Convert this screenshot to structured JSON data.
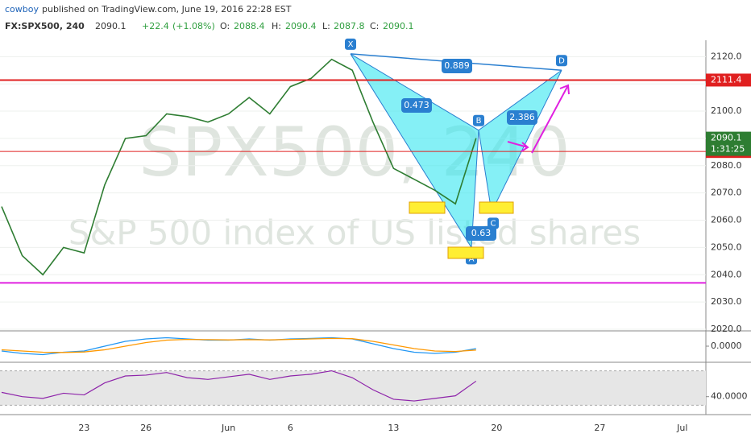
{
  "header": {
    "author": "cowboy",
    "published": "published on TradingView.com, June 19, 2016 22:28 EST",
    "symbol": "FX:SPX500, 240",
    "last": "2090.1",
    "change": "+22.4",
    "change_pct": "(+1.08%)",
    "o_label": "O:",
    "open": "2088.4",
    "h_label": "H:",
    "high": "2090.4",
    "l_label": "L:",
    "low": "2087.8",
    "c_label": "C:",
    "close": "2090.1"
  },
  "watermark": {
    "symbol": "SPX500, 240",
    "description": "S&P 500 index of US listed shares"
  },
  "chart_data": [
    {
      "type": "line",
      "categories": [
        null,
        null,
        null,
        null,
        "23",
        null,
        null,
        "26",
        null,
        null,
        null,
        "Jun",
        null,
        null,
        "6",
        null,
        null,
        null,
        null,
        "13",
        null,
        null,
        null,
        null,
        "20",
        null,
        null,
        null,
        null,
        "27",
        null,
        null,
        null,
        "Jul"
      ],
      "series": [
        {
          "name": "SPX500",
          "color": "#2e7d32",
          "values": [
            2065,
            2047,
            2040,
            2050,
            2048,
            2073,
            2090,
            2091,
            2099,
            2098,
            2096,
            2099,
            2105,
            2099,
            2109,
            2112,
            2119,
            2115,
            2096,
            2079,
            2075,
            2071,
            2066,
            2090.1,
            null,
            null,
            null,
            null,
            null,
            null,
            null,
            null,
            null,
            null
          ]
        }
      ],
      "ylim": [
        2020,
        2126
      ],
      "yticks": [
        {
          "value": 2020,
          "label": "2020.0"
        },
        {
          "value": 2030,
          "label": "2030.0"
        },
        {
          "value": 2040,
          "label": "2040.0"
        },
        {
          "value": 2050,
          "label": "2050.0"
        },
        {
          "value": 2060,
          "label": "2060.0"
        },
        {
          "value": 2070,
          "label": "2070.0"
        },
        {
          "value": 2080,
          "label": "2080.0"
        },
        {
          "value": 2090,
          "label": "2090.0"
        },
        {
          "value": 2100,
          "label": "2100.0"
        },
        {
          "value": 2110,
          "label": "2110.0"
        },
        {
          "value": 2120,
          "label": "2120.0"
        }
      ],
      "levels": [
        {
          "value": 2111.4,
          "color": "#e02020"
        },
        {
          "value": 2085.2,
          "color": "#e02020"
        },
        {
          "value": 2037,
          "color": "#e020e0"
        }
      ],
      "last_price": 2090.1,
      "countdown": "1:31:25",
      "pattern": {
        "color": "#33e6f0",
        "points": [
          {
            "label": "X",
            "value": 2121
          },
          {
            "label": "A",
            "value": 2050
          },
          {
            "label": "B",
            "value": 2093
          },
          {
            "label": "C",
            "value": 2063
          },
          {
            "label": "D",
            "value": 2115
          }
        ],
        "ratios": [
          0.889,
          0.473,
          2.386,
          0.63
        ]
      },
      "grid": true
    },
    {
      "type": "macd",
      "series": [
        {
          "name": "MACD",
          "color": "#2196f3",
          "values": [
            -2,
            -3,
            -3.5,
            -2.5,
            -2,
            0,
            2,
            3,
            3.5,
            3,
            2.5,
            2.5,
            3,
            2.5,
            3,
            3.2,
            3.5,
            3,
            1,
            -1,
            -2.5,
            -3,
            -2.5,
            -1
          ]
        },
        {
          "name": "Signal",
          "color": "#ff9800",
          "values": [
            -1.5,
            -2,
            -2.5,
            -2.6,
            -2.4,
            -1.5,
            0,
            1.5,
            2.5,
            2.8,
            2.7,
            2.6,
            2.7,
            2.6,
            2.8,
            3,
            3.2,
            3.1,
            2,
            0.5,
            -1,
            -2,
            -2.2,
            -1.6
          ]
        }
      ],
      "ylim": [
        -6,
        6
      ],
      "yticks": [
        {
          "value": 0,
          "label": "0.0000"
        }
      ]
    },
    {
      "type": "rsi",
      "series": [
        {
          "name": "RSI",
          "color": "#8e24aa",
          "values": [
            45,
            40,
            38,
            44,
            42,
            56,
            64,
            65,
            68,
            62,
            60,
            63,
            66,
            60,
            64,
            66,
            70,
            62,
            48,
            37,
            35,
            38,
            41,
            58
          ]
        }
      ],
      "ylim": [
        22,
        78
      ],
      "yticks": [
        {
          "value": 40,
          "label": "40.0000"
        }
      ],
      "band": [
        30,
        70
      ]
    }
  ]
}
